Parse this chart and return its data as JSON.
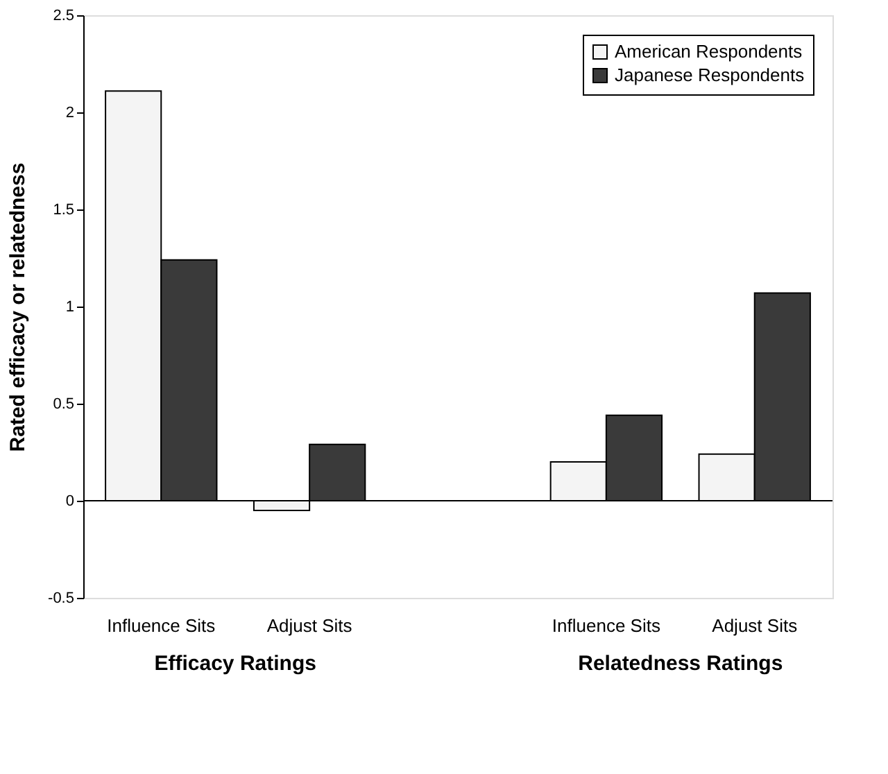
{
  "chart_data": {
    "type": "bar",
    "ylabel": "Rated efficacy or relatedness",
    "categories": [
      "Influence Sits",
      "Adjust Sits",
      null,
      "Influence Sits",
      "Adjust Sits"
    ],
    "series": [
      {
        "name": "American Respondents",
        "color": "#f4f4f4",
        "values": [
          2.11,
          -0.05,
          null,
          0.2,
          0.24
        ]
      },
      {
        "name": "Japanese Respondents",
        "color": "#3a3a3a",
        "values": [
          1.24,
          0.29,
          null,
          0.44,
          1.07
        ]
      }
    ],
    "ylim": [
      -0.5,
      2.5
    ],
    "yticks": [
      -0.5,
      0,
      0.5,
      1,
      1.5,
      2,
      2.5
    ],
    "ref_lines": [
      {
        "axis": "y",
        "value": 0
      }
    ],
    "annotations": [
      "Efficacy Ratings",
      "Relatedness Ratings"
    ],
    "legend": "top right",
    "grid": false
  }
}
